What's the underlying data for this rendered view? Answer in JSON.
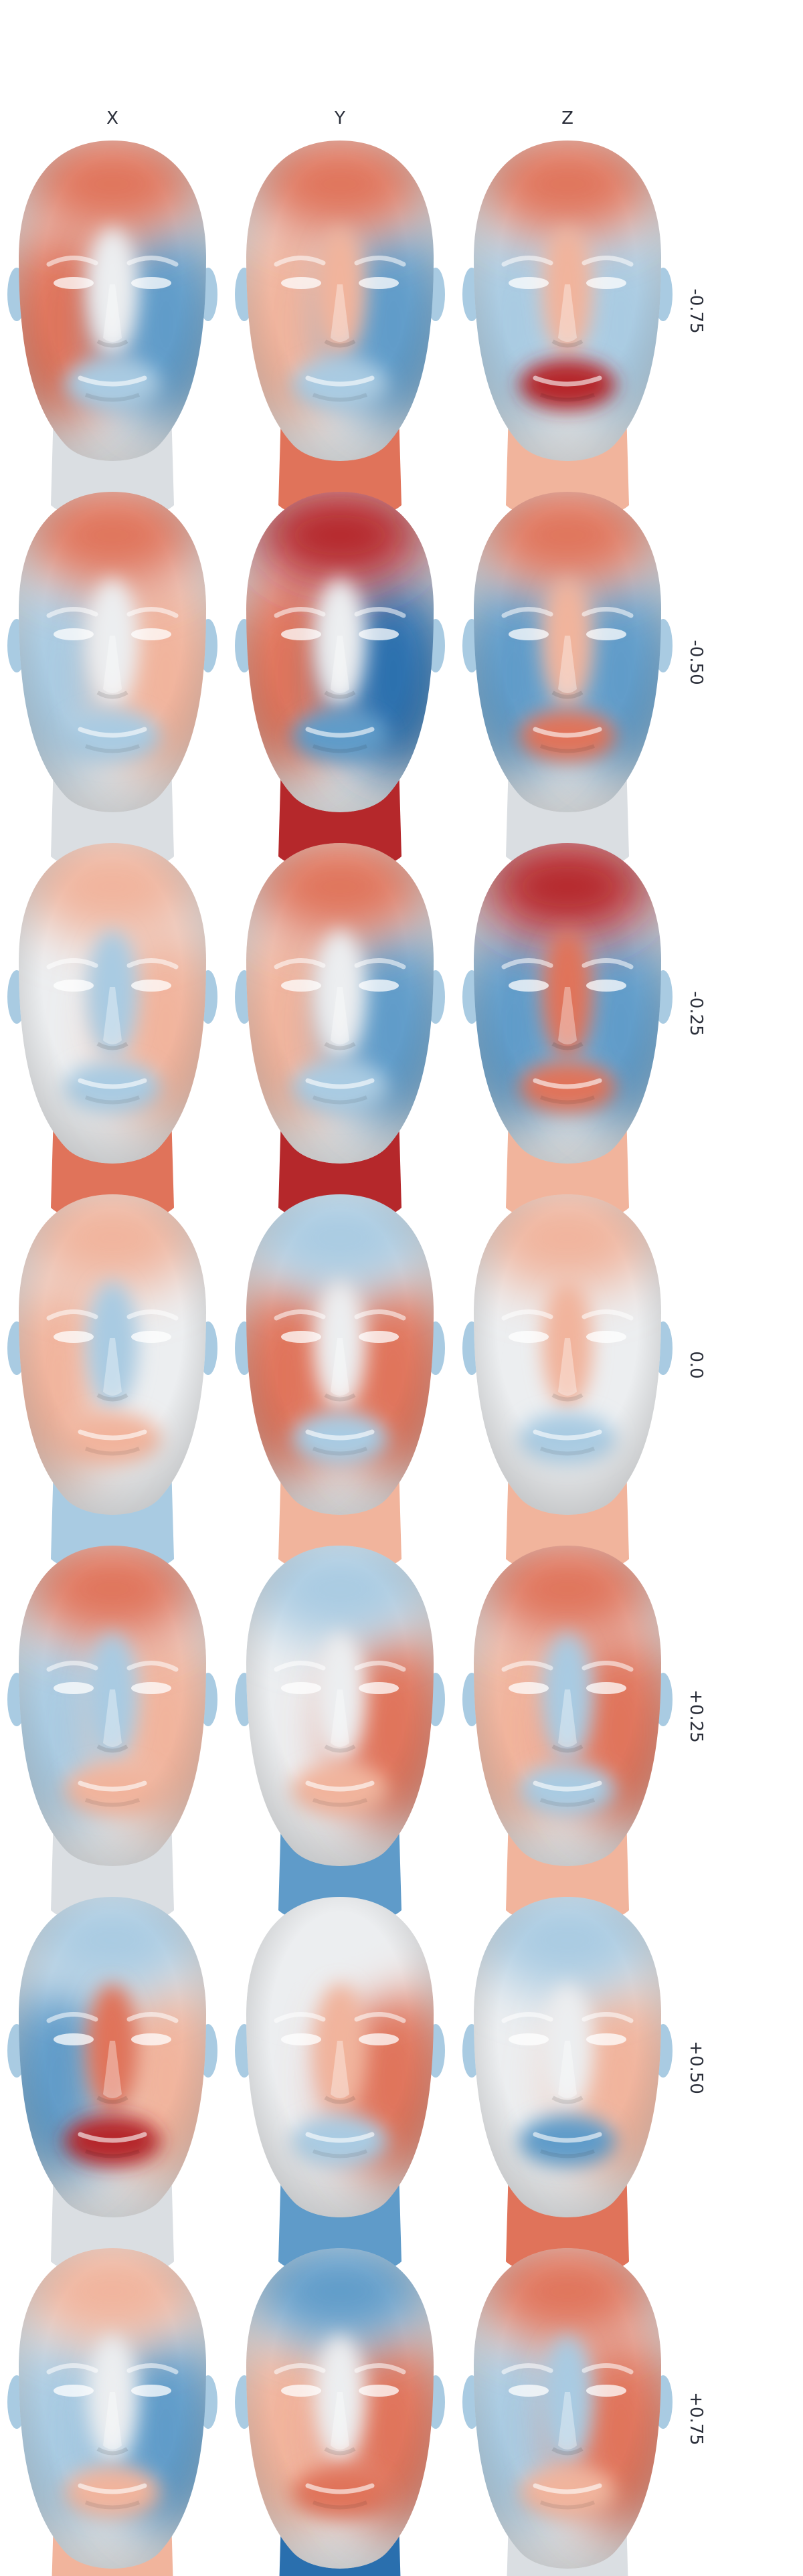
{
  "columns": [
    "X",
    "Y",
    "Z"
  ],
  "rows": [
    "-0.75",
    "-0.50",
    "-0.25",
    "0.0",
    "+0.25",
    "+0.50",
    "+0.75"
  ],
  "colors": {
    "red_dark": "#b5282b",
    "red_mid": "#e0735a",
    "red_light": "#f1b49c",
    "neutral": "#eceef0",
    "blue_light": "#a9cbe2",
    "blue_mid": "#5f9bc9",
    "blue_dark": "#2a6fae",
    "neck_grey": "#dadee2"
  },
  "faces": [
    {
      "row": 0,
      "col": 0,
      "top": "red_mid",
      "left": "red_mid",
      "right": "blue_mid",
      "center": "neutral",
      "mouth": "blue_light",
      "neck": "neck_grey"
    },
    {
      "row": 0,
      "col": 1,
      "top": "red_mid",
      "left": "red_light",
      "right": "blue_mid",
      "center": "red_light",
      "mouth": "blue_light",
      "neck": "red_mid"
    },
    {
      "row": 0,
      "col": 2,
      "top": "red_mid",
      "left": "blue_light",
      "right": "blue_light",
      "center": "red_light",
      "mouth": "red_dark",
      "neck": "red_light"
    },
    {
      "row": 1,
      "col": 0,
      "top": "red_mid",
      "left": "blue_light",
      "right": "red_light",
      "center": "neutral",
      "mouth": "blue_light",
      "neck": "neck_grey"
    },
    {
      "row": 1,
      "col": 1,
      "top": "red_dark",
      "left": "red_mid",
      "right": "blue_dark",
      "center": "neutral",
      "mouth": "blue_mid",
      "neck": "red_dark"
    },
    {
      "row": 1,
      "col": 2,
      "top": "red_mid",
      "left": "blue_mid",
      "right": "blue_mid",
      "center": "red_light",
      "mouth": "red_mid",
      "neck": "neck_grey"
    },
    {
      "row": 2,
      "col": 0,
      "top": "red_light",
      "left": "neutral",
      "right": "red_light",
      "center": "blue_light",
      "mouth": "blue_light",
      "neck": "red_mid"
    },
    {
      "row": 2,
      "col": 1,
      "top": "red_mid",
      "left": "red_light",
      "right": "blue_mid",
      "center": "neutral",
      "mouth": "blue_light",
      "neck": "red_dark"
    },
    {
      "row": 2,
      "col": 2,
      "top": "red_dark",
      "left": "blue_mid",
      "right": "blue_mid",
      "center": "red_mid",
      "mouth": "red_mid",
      "neck": "red_light"
    },
    {
      "row": 3,
      "col": 0,
      "top": "red_light",
      "left": "red_light",
      "right": "neutral",
      "center": "blue_light",
      "mouth": "red_light",
      "neck": "blue_light"
    },
    {
      "row": 3,
      "col": 1,
      "top": "blue_light",
      "left": "red_mid",
      "right": "red_mid",
      "center": "neutral",
      "mouth": "blue_light",
      "neck": "red_light"
    },
    {
      "row": 3,
      "col": 2,
      "top": "red_light",
      "left": "neutral",
      "right": "neutral",
      "center": "red_light",
      "mouth": "blue_light",
      "neck": "red_light"
    },
    {
      "row": 4,
      "col": 0,
      "top": "red_mid",
      "left": "blue_light",
      "right": "red_light",
      "center": "blue_light",
      "mouth": "red_light",
      "neck": "neck_grey"
    },
    {
      "row": 4,
      "col": 1,
      "top": "blue_light",
      "left": "neutral",
      "right": "red_mid",
      "center": "neutral",
      "mouth": "red_light",
      "neck": "blue_mid"
    },
    {
      "row": 4,
      "col": 2,
      "top": "red_mid",
      "left": "red_light",
      "right": "red_mid",
      "center": "blue_light",
      "mouth": "blue_light",
      "neck": "red_light"
    },
    {
      "row": 5,
      "col": 0,
      "top": "blue_light",
      "left": "blue_mid",
      "right": "red_light",
      "center": "red_mid",
      "mouth": "red_dark",
      "neck": "neck_grey"
    },
    {
      "row": 5,
      "col": 1,
      "top": "neutral",
      "left": "neutral",
      "right": "red_mid",
      "center": "red_light",
      "mouth": "blue_light",
      "neck": "blue_mid"
    },
    {
      "row": 5,
      "col": 2,
      "top": "blue_light",
      "left": "neutral",
      "right": "red_light",
      "center": "neutral",
      "mouth": "blue_mid",
      "neck": "red_mid"
    },
    {
      "row": 6,
      "col": 0,
      "top": "red_light",
      "left": "blue_light",
      "right": "blue_mid",
      "center": "neutral",
      "mouth": "red_light",
      "neck": "red_light"
    },
    {
      "row": 6,
      "col": 1,
      "top": "blue_mid",
      "left": "red_light",
      "right": "red_mid",
      "center": "neutral",
      "mouth": "red_mid",
      "neck": "blue_dark"
    },
    {
      "row": 6,
      "col": 2,
      "top": "red_mid",
      "left": "blue_light",
      "right": "red_mid",
      "center": "blue_light",
      "mouth": "red_light",
      "neck": "neck_grey"
    }
  ]
}
